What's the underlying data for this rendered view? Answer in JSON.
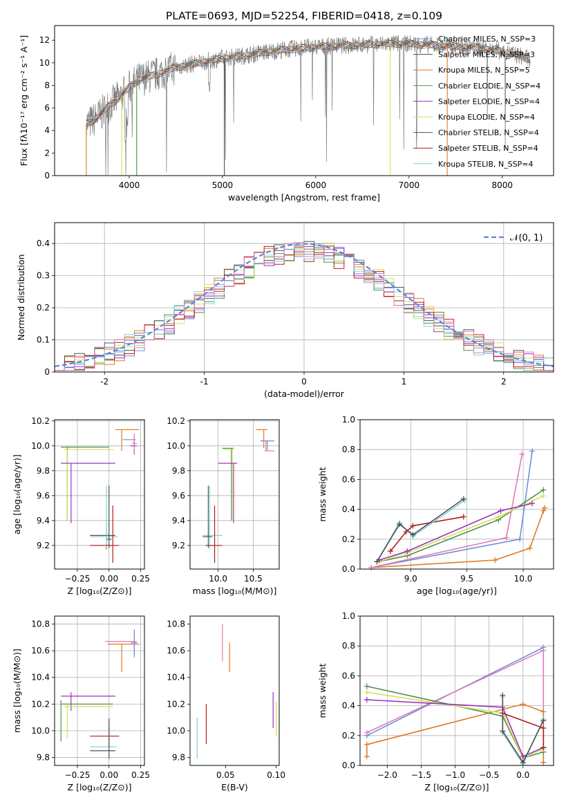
{
  "title": "PLATE=0693, MJD=52254, FIBERID=0418, z=0.109",
  "colors": [
    "#6a8fd8",
    "#4d4d4d",
    "#e07b24",
    "#4f8f4f",
    "#9b30c0",
    "#d4e157",
    "#505050",
    "#b01c1c",
    "#7fd3d8",
    "#e07bb8",
    "#c6c6c6"
  ],
  "chart_data": [
    {
      "id": "spectrum",
      "type": "line",
      "xlabel": "wavelength [Angstrom, rest frame]",
      "ylabel": "Flux [fλ10⁻¹⁷ erg cm⁻² s⁻¹ A⁻¹]",
      "xlim": [
        3200,
        8550
      ],
      "ylim": [
        0,
        13.3
      ],
      "xticks": [
        4000,
        5000,
        6000,
        7000,
        8000
      ],
      "yticks": [
        0,
        2,
        4,
        6,
        8,
        10,
        12
      ],
      "legend": "right",
      "legend_entries": [
        {
          "label": "Chabrier MILES, N_SSP=3",
          "color": "#6a8fd8"
        },
        {
          "label": "Salpeter MILES, N_SSP=3",
          "color": "#4d4d4d"
        },
        {
          "label": "Kroupa MILES, N_SSP=5",
          "color": "#e07b24"
        },
        {
          "label": "Chabrier ELODIE, N_SSP=4",
          "color": "#4f8f4f"
        },
        {
          "label": "Salpeter ELODIE, N_SSP=4",
          "color": "#9b30c0"
        },
        {
          "label": "Kroupa ELODIE, N_SSP=4",
          "color": "#d4e157"
        },
        {
          "label": "Chabrier STELIB, N_SSP=4",
          "color": "#505050"
        },
        {
          "label": "Salpeter STELIB, N_SSP=4",
          "color": "#b01c1c"
        },
        {
          "label": "Kroupa STELIB, N_SSP=4",
          "color": "#7fd3d8"
        }
      ],
      "continuum": {
        "x": [
          3540,
          3600,
          3700,
          3800,
          3900,
          4000,
          4100,
          4300,
          4500,
          4800,
          5000,
          5200,
          5500,
          5800,
          6000,
          6200,
          6500,
          6800,
          7000,
          7200,
          7400,
          7600,
          7800,
          8000,
          8200,
          8300
        ],
        "y": [
          4.6,
          4.8,
          5.5,
          6.3,
          7.0,
          7.8,
          8.5,
          9.0,
          9.6,
          10.1,
          10.4,
          10.6,
          11.0,
          11.3,
          11.4,
          11.5,
          11.6,
          11.7,
          11.7,
          11.6,
          11.5,
          11.4,
          11.3,
          11.0,
          10.6,
          10.3
        ]
      },
      "dropouts": [
        {
          "x": 3540,
          "color": "#e07b24"
        },
        {
          "x": 3920,
          "color": "#d4e157"
        },
        {
          "x": 4080,
          "color": "#4f8f4f"
        },
        {
          "x": 5020,
          "color": "#4d4d4d"
        },
        {
          "x": 6800,
          "color": "#d4e157"
        },
        {
          "x": 7410,
          "color": "#e07b24"
        }
      ]
    },
    {
      "id": "residuals",
      "type": "bar",
      "xlabel": "(data-model)/error",
      "ylabel": "Normed distribution",
      "xlim": [
        -2.5,
        2.5
      ],
      "ylim": [
        0,
        0.465
      ],
      "xticks": [
        -2,
        -1,
        0,
        1,
        2
      ],
      "yticks": [
        0.0,
        0.1,
        0.2,
        0.3,
        0.4
      ],
      "grid": true,
      "legend": "top-right",
      "gaussian_label": "𝒩(0, 1)",
      "gaussian_color": "#5b84d6",
      "bin_width": 0.1
    },
    {
      "id": "age-vs-Z",
      "type": "scatter",
      "xlabel": "Z [log₁₀(Z/Z⊙)]",
      "ylabel": "age  [log₁₀(age/yr)]",
      "xlim": [
        -0.43,
        0.28
      ],
      "ylim": [
        9.01,
        10.21
      ],
      "xticks": [
        -0.25,
        0.0,
        0.25
      ],
      "xticklabels": [
        "−0.25",
        "0.00",
        "0.25"
      ],
      "yticks": [
        9.2,
        9.4,
        9.6,
        9.8,
        10.0,
        10.2
      ],
      "yticklabels": [
        "9.2",
        "9.4",
        "9.6",
        "9.8",
        "10.0",
        "10.2"
      ],
      "grid": true,
      "points": [
        {
          "x": 0.15,
          "y": 10.05,
          "xl": 0.11,
          "xr": 0.21,
          "yl": 10.05,
          "yh": 10.05,
          "c": "#6a8fd8"
        },
        {
          "x": 0.1,
          "y": 10.13,
          "xl": 0.05,
          "xr": 0.24,
          "yl": 9.96,
          "yh": 10.13,
          "c": "#e07b24"
        },
        {
          "x": 0.2,
          "y": 10.0,
          "xl": 0.17,
          "xr": 0.22,
          "yl": 9.93,
          "yh": 10.08,
          "c": "#9b30c0"
        },
        {
          "x": 0.2,
          "y": 10.02,
          "xl": 0.18,
          "xr": 0.22,
          "yl": 9.94,
          "yh": 10.1,
          "c": "#e07bb8"
        },
        {
          "x": -0.33,
          "y": 9.99,
          "xl": -0.38,
          "xr": 0.0,
          "yl": 9.4,
          "yh": 9.99,
          "c": "#4f8f4f"
        },
        {
          "x": -0.33,
          "y": 9.97,
          "xl": -0.36,
          "xr": 0.04,
          "yl": 9.4,
          "yh": 9.97,
          "c": "#d4e157"
        },
        {
          "x": -0.3,
          "y": 9.86,
          "xl": -0.38,
          "xr": 0.05,
          "yl": 9.38,
          "yh": 9.86,
          "c": "#9b30c0"
        },
        {
          "x": -0.02,
          "y": 9.28,
          "xl": -0.15,
          "xr": 0.05,
          "yl": 9.17,
          "yh": 9.38,
          "c": "#505050"
        },
        {
          "x": -0.02,
          "y": 9.27,
          "xl": -0.15,
          "xr": 0.07,
          "yl": 9.18,
          "yh": 9.68,
          "c": "#7fd3d8"
        },
        {
          "x": 0.03,
          "y": 9.2,
          "xl": -0.15,
          "xr": 0.08,
          "yl": 9.06,
          "yh": 9.52,
          "c": "#b01c1c"
        },
        {
          "x": 0.0,
          "y": 9.25,
          "xl": -0.02,
          "xr": 0.02,
          "yl": 9.18,
          "yh": 9.68,
          "c": "#4d4d4d"
        }
      ]
    },
    {
      "id": "age-vs-mass",
      "type": "scatter",
      "xlabel": "mass [log₁₀(M/M⊙)]",
      "ylabel": "",
      "xlim": [
        9.6,
        10.87
      ],
      "ylim": [
        9.01,
        10.21
      ],
      "xticks": [
        10.0,
        10.5
      ],
      "xticklabels": [
        "10.0",
        "10.5"
      ],
      "yticks": [
        9.2,
        9.4,
        9.6,
        9.8,
        10.0,
        10.2
      ],
      "yticklabels": [
        "9.2",
        "9.4",
        "9.6",
        "9.8",
        "10.0",
        "10.2"
      ],
      "grid": true,
      "points": [
        {
          "x": 10.7,
          "y": 10.04,
          "xl": 10.6,
          "xr": 10.8,
          "yl": 9.96,
          "yh": 10.04,
          "c": "#6a8fd8"
        },
        {
          "x": 10.65,
          "y": 10.13,
          "xl": 10.54,
          "xr": 10.7,
          "yl": 9.98,
          "yh": 10.13,
          "c": "#e07b24"
        },
        {
          "x": 10.68,
          "y": 9.96,
          "xl": 10.66,
          "xr": 10.8,
          "yl": 9.96,
          "yh": 10.04,
          "c": "#e07bb8"
        },
        {
          "x": 10.19,
          "y": 9.98,
          "xl": 10.06,
          "xr": 10.22,
          "yl": 9.4,
          "yh": 9.98,
          "c": "#4f8f4f"
        },
        {
          "x": 10.2,
          "y": 9.97,
          "xl": 10.08,
          "xr": 10.22,
          "yl": 9.4,
          "yh": 9.97,
          "c": "#d4e157"
        },
        {
          "x": 10.22,
          "y": 9.86,
          "xl": 10.0,
          "xr": 10.27,
          "yl": 9.38,
          "yh": 9.86,
          "c": "#9b30c0"
        },
        {
          "x": 9.88,
          "y": 9.28,
          "xl": 9.78,
          "xr": 10.06,
          "yl": 9.17,
          "yh": 9.68,
          "c": "#7fd3d8"
        },
        {
          "x": 9.86,
          "y": 9.27,
          "xl": 9.78,
          "xr": 9.92,
          "yl": 9.18,
          "yh": 9.68,
          "c": "#505050"
        },
        {
          "x": 9.95,
          "y": 9.2,
          "xl": 9.82,
          "xr": 10.06,
          "yl": 9.06,
          "yh": 9.52,
          "c": "#b01c1c"
        }
      ]
    },
    {
      "id": "mass-weight-vs-age",
      "type": "line",
      "xlabel": "age  [log₁₀(age/yr)]",
      "ylabel": "mass weight",
      "xlim": [
        8.55,
        10.27
      ],
      "ylim": [
        0,
        1
      ],
      "xticks": [
        9.0,
        9.5,
        10.0
      ],
      "xticklabels": [
        "9.0",
        "9.5",
        "10.0"
      ],
      "yticks": [
        0.0,
        0.2,
        0.4,
        0.6,
        0.8,
        1.0
      ],
      "yticklabels": [
        "0.0",
        "0.2",
        "0.4",
        "0.6",
        "0.8",
        "1.0"
      ],
      "grid": true,
      "series": [
        {
          "c": "#6a8fd8",
          "x": [
            8.65,
            9.97,
            10.08
          ],
          "y": [
            0.01,
            0.2,
            0.79
          ]
        },
        {
          "c": "#e07b24",
          "x": [
            8.65,
            9.75,
            10.06,
            10.18,
            10.19
          ],
          "y": [
            0.01,
            0.06,
            0.14,
            0.39,
            0.41
          ]
        },
        {
          "c": "#e07bb8",
          "x": [
            8.65,
            9.85,
            9.99
          ],
          "y": [
            0.01,
            0.21,
            0.77
          ]
        },
        {
          "c": "#4f8f4f",
          "x": [
            8.72,
            8.97,
            9.78,
            10.18
          ],
          "y": [
            0.05,
            0.09,
            0.33,
            0.53
          ]
        },
        {
          "c": "#d4e157",
          "x": [
            8.72,
            8.97,
            9.78,
            10.18
          ],
          "y": [
            0.05,
            0.11,
            0.35,
            0.49
          ]
        },
        {
          "c": "#9b30c0",
          "x": [
            8.72,
            8.97,
            9.8,
            10.08
          ],
          "y": [
            0.06,
            0.12,
            0.39,
            0.44
          ]
        },
        {
          "c": "#b01c1c",
          "x": [
            8.82,
            8.96,
            9.02,
            9.47
          ],
          "y": [
            0.12,
            0.25,
            0.29,
            0.35
          ]
        },
        {
          "c": "#7fd3d8",
          "x": [
            8.7,
            8.9,
            9.02,
            9.48
          ],
          "y": [
            0.05,
            0.31,
            0.22,
            0.46
          ]
        },
        {
          "c": "#505050",
          "x": [
            8.7,
            8.9,
            9.02,
            9.47
          ],
          "y": [
            0.05,
            0.3,
            0.23,
            0.47
          ]
        }
      ]
    },
    {
      "id": "mass-vs-Z",
      "type": "scatter",
      "xlabel": "Z [log₁₀(Z/Z⊙)]",
      "ylabel": "mass [log₁₀(M/M⊙)]",
      "xlim": [
        -0.43,
        0.28
      ],
      "ylim": [
        9.74,
        10.86
      ],
      "xticks": [
        -0.25,
        0.0,
        0.25
      ],
      "xticklabels": [
        "−0.25",
        "0.00",
        "0.25"
      ],
      "yticks": [
        9.8,
        10.0,
        10.2,
        10.4,
        10.6,
        10.8
      ],
      "yticklabels": [
        "9.8",
        "10.0",
        "10.2",
        "10.4",
        "10.6",
        "10.8"
      ],
      "grid": true,
      "points": [
        {
          "x": 0.2,
          "y": 10.67,
          "xl": -0.03,
          "xr": 0.22,
          "yl": 10.57,
          "yh": 10.74,
          "c": "#e07bb8"
        },
        {
          "x": 0.1,
          "y": 10.65,
          "xl": -0.01,
          "xr": 0.24,
          "yl": 10.44,
          "yh": 10.65,
          "c": "#e07b24"
        },
        {
          "x": 0.2,
          "y": 10.66,
          "xl": 0.17,
          "xr": 0.22,
          "yl": 10.55,
          "yh": 10.76,
          "c": "#6a8fd8"
        },
        {
          "x": -0.3,
          "y": 10.26,
          "xl": -0.38,
          "xr": 0.05,
          "yl": 10.15,
          "yh": 10.29,
          "c": "#9b30c0"
        },
        {
          "x": -0.38,
          "y": 10.2,
          "xl": -0.38,
          "xr": 0.03,
          "yl": 9.92,
          "yh": 10.23,
          "c": "#4f8f4f"
        },
        {
          "x": -0.33,
          "y": 10.18,
          "xl": -0.36,
          "xr": 0.03,
          "yl": 9.94,
          "yh": 10.2,
          "c": "#d4e157"
        },
        {
          "x": 0.0,
          "y": 9.96,
          "xl": -0.15,
          "xr": 0.08,
          "yl": 9.88,
          "yh": 10.03,
          "c": "#b01c1c"
        },
        {
          "x": 0.0,
          "y": 9.88,
          "xl": -0.15,
          "xr": 0.06,
          "yl": 9.82,
          "yh": 10.1,
          "c": "#7fd3d8"
        },
        {
          "x": 0.0,
          "y": 9.85,
          "xl": -0.15,
          "xr": 0.05,
          "yl": 9.79,
          "yh": 10.09,
          "c": "#505050"
        }
      ]
    },
    {
      "id": "mass-vs-EBV",
      "type": "scatter",
      "xlabel": "E(B-V)",
      "ylabel": "",
      "xlim": [
        0.015,
        0.103
      ],
      "ylim": [
        9.74,
        10.86
      ],
      "xticks": [
        0.05,
        0.1
      ],
      "xticklabels": [
        "0.05",
        "0.10"
      ],
      "yticks": [
        9.8,
        10.0,
        10.2,
        10.4,
        10.6,
        10.8
      ],
      "yticklabels": [
        "9.8",
        "10.0",
        "10.2",
        "10.4",
        "10.6",
        "10.8"
      ],
      "grid": false,
      "points": [
        {
          "x": 0.047,
          "y": 10.66,
          "xl": 0.047,
          "xr": 0.047,
          "yl": 10.52,
          "yh": 10.8,
          "c": "#e07bb8"
        },
        {
          "x": 0.054,
          "y": 10.55,
          "xl": 0.054,
          "xr": 0.054,
          "yl": 10.44,
          "yh": 10.66,
          "c": "#e07b24"
        },
        {
          "x": 0.031,
          "y": 10.05,
          "xl": 0.031,
          "xr": 0.031,
          "yl": 9.9,
          "yh": 10.2,
          "c": "#b01c1c"
        },
        {
          "x": 0.022,
          "y": 9.94,
          "xl": 0.022,
          "xr": 0.022,
          "yl": 9.79,
          "yh": 10.1,
          "c": "#7fd3d8"
        },
        {
          "x": 0.097,
          "y": 10.16,
          "xl": 0.097,
          "xr": 0.097,
          "yl": 10.02,
          "yh": 10.29,
          "c": "#9b30c0"
        },
        {
          "x": 0.1,
          "y": 10.1,
          "xl": 0.1,
          "xr": 0.1,
          "yl": 9.96,
          "yh": 10.22,
          "c": "#d4e157"
        }
      ]
    },
    {
      "id": "mass-weight-vs-Z",
      "type": "line",
      "xlabel": "Z [log₁₀(Z/Z⊙)]",
      "ylabel": "mass weight",
      "xlim": [
        -2.4,
        0.45
      ],
      "ylim": [
        0,
        1
      ],
      "xticks": [
        -2.0,
        -1.5,
        -1.0,
        -0.5,
        0.0
      ],
      "xticklabels": [
        "−2.0",
        "−1.5",
        "−1.0",
        "−0.5",
        "0.0"
      ],
      "yticks": [
        0.0,
        0.2,
        0.4,
        0.6,
        0.8,
        1.0
      ],
      "yticklabels": [
        "0.0",
        "0.2",
        "0.4",
        "0.6",
        "0.8",
        "1.0"
      ],
      "grid": true,
      "series": [
        {
          "c": "#6a8fd8",
          "x": [
            -2.3,
            0.3
          ],
          "y": [
            0.2,
            0.79
          ]
        },
        {
          "c": "#e07bb8",
          "x": [
            -2.3,
            0.3,
            0.3
          ],
          "y": [
            0.22,
            0.77,
            0.02
          ]
        },
        {
          "c": "#e07b24",
          "x": [
            -2.3,
            -2.3,
            0.0,
            0.3,
            0.3
          ],
          "y": [
            0.06,
            0.14,
            0.41,
            0.36,
            0.02
          ]
        },
        {
          "c": "#4f8f4f",
          "x": [
            -2.3,
            -0.3,
            0.0,
            0.3
          ],
          "y": [
            0.53,
            0.33,
            0.05,
            0.09
          ]
        },
        {
          "c": "#d4e157",
          "x": [
            -2.3,
            -0.3,
            0.0,
            0.3
          ],
          "y": [
            0.49,
            0.35,
            0.05,
            0.11
          ]
        },
        {
          "c": "#9b30c0",
          "x": [
            -2.3,
            -0.3,
            0.0,
            0.3
          ],
          "y": [
            0.44,
            0.39,
            0.06,
            0.12
          ]
        },
        {
          "c": "#b01c1c",
          "x": [
            -0.3,
            0.3,
            0.3
          ],
          "y": [
            0.35,
            0.25,
            0.12
          ]
        },
        {
          "c": "#7fd3d8",
          "x": [
            -0.3,
            -0.3,
            0.0,
            0.3
          ],
          "y": [
            0.46,
            0.22,
            0.01,
            0.31
          ]
        },
        {
          "c": "#505050",
          "x": [
            -0.3,
            -0.3,
            0.0,
            0.3
          ],
          "y": [
            0.47,
            0.23,
            0.02,
            0.3
          ]
        }
      ]
    }
  ]
}
